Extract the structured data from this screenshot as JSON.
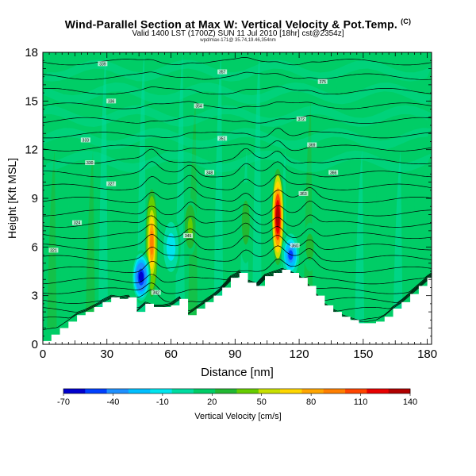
{
  "title": {
    "main": "Wind-Parallel Section at Max W: Vertical Velocity & Pot.Temp.",
    "copyright": "(C)",
    "valid_line": "Valid 1400 LST (1700Z) SUN 11 Jul 2010 [18hr] cst@2354z]",
    "info_line": "wpd/max-171@ 35.74,19.46,354nm"
  },
  "chart_data": {
    "type": "heatmap",
    "title": "Wind-Parallel Section at Max W: Vertical Velocity & Pot.Temp.",
    "xlabel": "Distance [nm]",
    "ylabel": "Height [Kft MSL]",
    "xlim": [
      0,
      182
    ],
    "ylim": [
      0,
      18
    ],
    "xticks": [
      0,
      30,
      60,
      90,
      120,
      150,
      180
    ],
    "yticks": [
      0,
      3,
      6,
      9,
      12,
      15,
      18
    ],
    "colorbar": {
      "label": "Vertical Velocity [cm/s]",
      "ticks": [
        -70,
        -40,
        -10,
        20,
        50,
        80,
        110,
        140
      ],
      "colors": [
        "#0000cd",
        "#0040ff",
        "#1e90ff",
        "#00bfff",
        "#00e5ee",
        "#00dca0",
        "#00cd66",
        "#22b832",
        "#66cd00",
        "#c8e000",
        "#ffd700",
        "#ffa500",
        "#ff7f00",
        "#ff4500",
        "#e80000",
        "#b00000"
      ]
    },
    "terrain": [
      [
        0,
        0.2
      ],
      [
        4,
        0.6
      ],
      [
        8,
        1.0
      ],
      [
        12,
        1.4
      ],
      [
        16,
        1.8
      ],
      [
        20,
        2.0
      ],
      [
        24,
        2.3
      ],
      [
        28,
        2.6
      ],
      [
        32,
        2.9
      ],
      [
        36,
        2.8
      ],
      [
        40,
        2.9
      ],
      [
        44,
        2.0
      ],
      [
        48,
        2.5
      ],
      [
        52,
        2.3
      ],
      [
        56,
        2.3
      ],
      [
        60,
        2.4
      ],
      [
        64,
        2.8
      ],
      [
        68,
        1.8
      ],
      [
        72,
        2.2
      ],
      [
        76,
        2.6
      ],
      [
        80,
        3.0
      ],
      [
        84,
        3.5
      ],
      [
        88,
        4.1
      ],
      [
        92,
        4.4
      ],
      [
        96,
        3.8
      ],
      [
        100,
        3.6
      ],
      [
        104,
        4.2
      ],
      [
        108,
        4.4
      ],
      [
        112,
        4.6
      ],
      [
        116,
        4.4
      ],
      [
        120,
        4.1
      ],
      [
        124,
        3.6
      ],
      [
        128,
        3.0
      ],
      [
        132,
        2.4
      ],
      [
        136,
        2.0
      ],
      [
        140,
        1.7
      ],
      [
        144,
        1.5
      ],
      [
        148,
        1.3
      ],
      [
        152,
        1.3
      ],
      [
        156,
        1.4
      ],
      [
        160,
        1.7
      ],
      [
        164,
        2.2
      ],
      [
        168,
        2.6
      ],
      [
        172,
        3.1
      ],
      [
        176,
        3.6
      ],
      [
        180,
        4.1
      ],
      [
        182,
        4.3
      ]
    ],
    "updrafts": [
      {
        "x": 51,
        "z_bottom": 2.5,
        "z_top": 10.0,
        "w_max": 90
      },
      {
        "x": 110,
        "z_bottom": 4.5,
        "z_top": 11.2,
        "w_max": 140
      },
      {
        "x": 69,
        "z_bottom": 5.5,
        "z_top": 9.0,
        "w_max": 40
      },
      {
        "x": 95,
        "z_bottom": 5.0,
        "z_top": 10.0,
        "w_max": 30
      },
      {
        "x": 125,
        "z_bottom": 4.5,
        "z_top": 7.5,
        "w_max": 30
      }
    ],
    "downdrafts": [
      {
        "x": 46,
        "z_bottom": 2.5,
        "z_top": 5.8,
        "w_min": -65
      },
      {
        "x": 116,
        "z_bottom": 4.0,
        "z_top": 7.0,
        "w_min": -45
      },
      {
        "x": 60,
        "z_bottom": 4.0,
        "z_top": 8.0,
        "w_min": -15
      }
    ],
    "isentropes": {
      "base_heights": [
        0.9,
        1.5,
        2.1,
        2.7,
        3.3,
        3.9,
        4.6,
        5.3,
        6.0,
        6.7,
        7.4,
        8.1,
        8.9,
        9.7,
        10.5,
        11.3,
        12.1,
        12.9,
        13.8,
        14.7,
        15.6,
        16.5,
        17.4
      ],
      "labels": [
        {
          "text": "321",
          "x": 5,
          "z": 5.8
        },
        {
          "text": "324",
          "x": 16,
          "z": 7.5
        },
        {
          "text": "327",
          "x": 32,
          "z": 9.9
        },
        {
          "text": "330",
          "x": 22,
          "z": 11.2
        },
        {
          "text": "333",
          "x": 20,
          "z": 12.6
        },
        {
          "text": "336",
          "x": 32,
          "z": 15.0
        },
        {
          "text": "339",
          "x": 28,
          "z": 17.3
        },
        {
          "text": "342",
          "x": 53,
          "z": 3.2
        },
        {
          "text": "345",
          "x": 68,
          "z": 6.7
        },
        {
          "text": "348",
          "x": 78,
          "z": 10.6
        },
        {
          "text": "351",
          "x": 84,
          "z": 12.7
        },
        {
          "text": "354",
          "x": 73,
          "z": 14.7
        },
        {
          "text": "357",
          "x": 84,
          "z": 16.8
        },
        {
          "text": "360",
          "x": 118,
          "z": 6.1
        },
        {
          "text": "363",
          "x": 122,
          "z": 9.3
        },
        {
          "text": "366",
          "x": 136,
          "z": 10.6
        },
        {
          "text": "369",
          "x": 126,
          "z": 12.3
        },
        {
          "text": "372",
          "x": 121,
          "z": 13.9
        },
        {
          "text": "375",
          "x": 131,
          "z": 16.2
        }
      ]
    }
  }
}
